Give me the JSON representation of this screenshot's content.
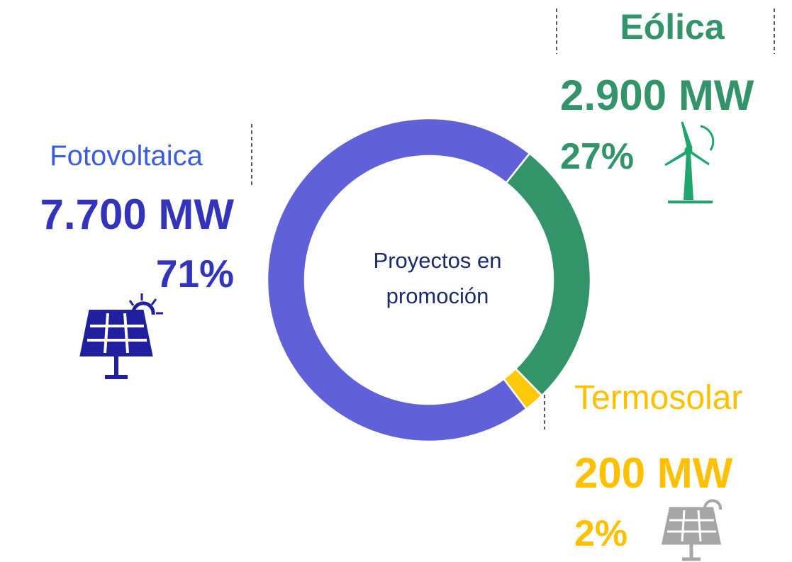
{
  "chart_data": {
    "type": "donut",
    "center_label": [
      "Proyectos en",
      "promoción"
    ],
    "categories": [
      "Fotovoltaica",
      "Eólica",
      "Termosolar"
    ],
    "values": [
      71,
      27,
      2
    ],
    "value_labels": [
      "71%",
      "27%",
      "2%"
    ],
    "capacity": {
      "values": [
        7700,
        2900,
        200
      ],
      "labels": [
        "7.700 MW",
        "2.900 MW",
        "200 MW"
      ]
    },
    "colors": [
      "#6060d8",
      "#339469",
      "#ffc90a"
    ]
  }
}
